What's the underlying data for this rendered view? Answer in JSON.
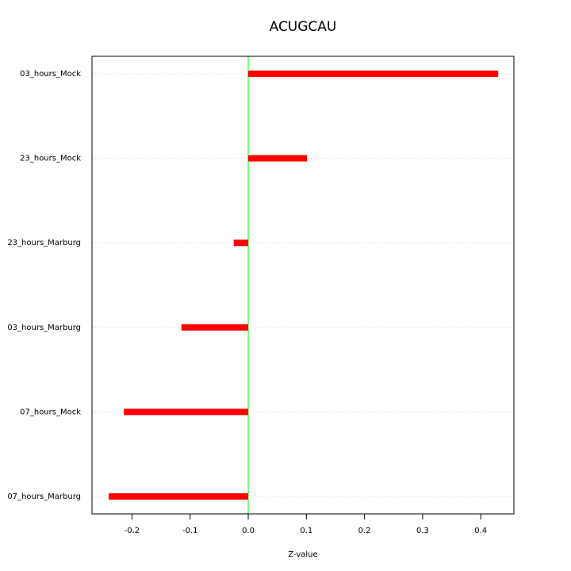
{
  "chart_data": {
    "type": "hbar",
    "title": "ACUGCAU",
    "x_label": "Z-value",
    "categories": [
      "03_hours_Mock",
      "23_hours_Mock",
      "23_hours_Marburg",
      "03_hours_Marburg",
      "07_hours_Mock",
      "07_hours_Marburg"
    ],
    "values": [
      0.43,
      0.101,
      -0.025,
      -0.115,
      -0.214,
      -0.24
    ],
    "color": "#ff0000",
    "xlim": [
      -0.2688,
      0.457
    ],
    "xticks": [
      -0.2,
      -0.1,
      {
        "value": 0,
        "label": "0.0"
      },
      0.1,
      0.2,
      0.3,
      0.4
    ],
    "grid": true,
    "reference_line": 0,
    "reference_line_color": "#00ff00"
  }
}
